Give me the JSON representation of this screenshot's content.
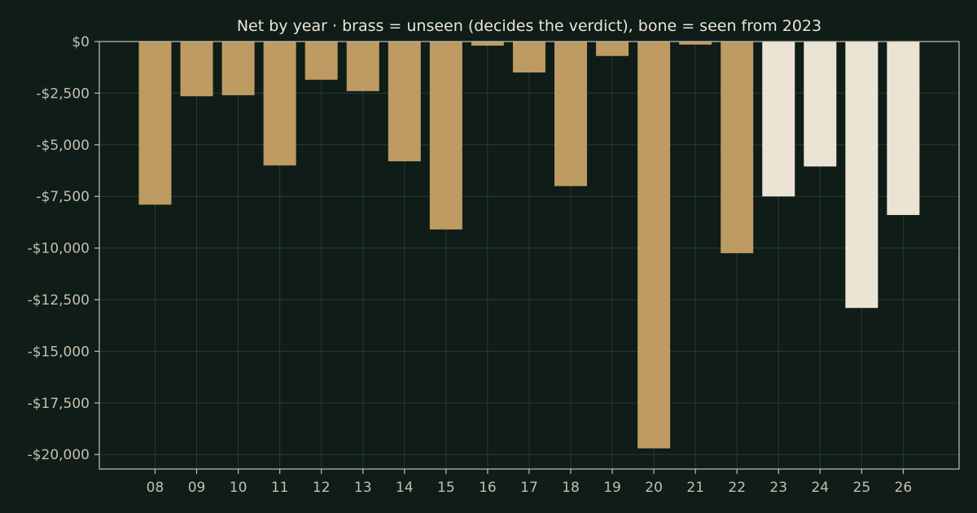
{
  "chart_data": {
    "type": "bar",
    "title": "Net by year  ·  brass = unseen (decides the verdict), bone = seen from 2023",
    "xlabel": "",
    "ylabel": "",
    "categories": [
      "08",
      "09",
      "10",
      "11",
      "12",
      "13",
      "14",
      "15",
      "16",
      "17",
      "18",
      "19",
      "20",
      "21",
      "22",
      "23",
      "24",
      "25",
      "26"
    ],
    "values": [
      -7900,
      -2650,
      -2600,
      -6000,
      -1850,
      -2400,
      -5800,
      -9100,
      -200,
      -1500,
      -7000,
      -700,
      -19700,
      -150,
      -10250,
      -7500,
      -6050,
      -12900,
      -8400
    ],
    "highlight": [
      "unseen",
      "unseen",
      "unseen",
      "unseen",
      "unseen",
      "unseen",
      "unseen",
      "unseen",
      "unseen",
      "unseen",
      "unseen",
      "unseen",
      "unseen",
      "unseen",
      "unseen",
      "seen",
      "seen",
      "seen",
      "seen"
    ],
    "colors": {
      "unseen": "#bd9b62",
      "seen": "#ebe4d5"
    },
    "ylim": [
      -20700,
      0
    ],
    "yticks": [
      0,
      -2500,
      -5000,
      -7500,
      -10000,
      -12500,
      -15000,
      -17500,
      -20000
    ],
    "ytick_labels": [
      "$0",
      "-$2,500",
      "-$5,000",
      "-$7,500",
      "-$10,000",
      "-$12,500",
      "-$15,000",
      "-$17,500",
      "-$20,000"
    ],
    "grid": true,
    "legend": "none"
  }
}
